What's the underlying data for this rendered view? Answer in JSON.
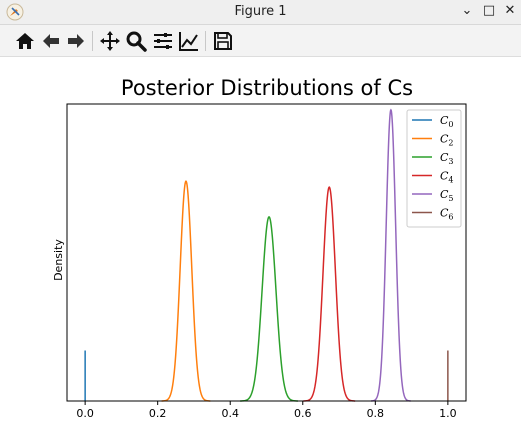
{
  "window": {
    "title": "Figure 1",
    "minimize_glyph": "⌄",
    "maximize_glyph": "□",
    "close_glyph": "✕"
  },
  "toolbar": {
    "icons": [
      "home-icon",
      "back-arrow-icon",
      "forward-arrow-icon",
      "pan-icon",
      "zoom-icon",
      "subplots-icon",
      "edit-curves-icon",
      "save-icon"
    ]
  },
  "chart_data": {
    "type": "line",
    "title": "Posterior Distributions of Cs",
    "xlabel": "",
    "ylabel": "Density",
    "xlim": [
      -0.05,
      1.05
    ],
    "ylim": [
      0,
      1.0
    ],
    "xticks": [
      0.0,
      0.2,
      0.4,
      0.6,
      0.8,
      1.0
    ],
    "xtick_labels": [
      "0.0",
      "0.2",
      "0.4",
      "0.6",
      "0.8",
      "1.0"
    ],
    "yticks_visible": false,
    "grid": false,
    "legend_position": "top-right",
    "series": [
      {
        "name": "C",
        "sub": "0",
        "kind": "spike",
        "x": 0.0,
        "height": 0.17,
        "color": "#1f77b4"
      },
      {
        "name": "C",
        "sub": "2",
        "kind": "density",
        "mean": 0.278,
        "sd": 0.016,
        "peak": 0.74,
        "color": "#ff7f0e"
      },
      {
        "name": "C",
        "sub": "3",
        "kind": "density",
        "mean": 0.507,
        "sd": 0.019,
        "peak": 0.62,
        "color": "#2ca02c"
      },
      {
        "name": "C",
        "sub": "4",
        "kind": "density",
        "mean": 0.673,
        "sd": 0.017,
        "peak": 0.72,
        "color": "#d62728"
      },
      {
        "name": "C",
        "sub": "5",
        "kind": "density",
        "mean": 0.843,
        "sd": 0.013,
        "peak": 0.98,
        "color": "#9467bd"
      },
      {
        "name": "C",
        "sub": "6",
        "kind": "spike",
        "x": 1.0,
        "height": 0.17,
        "color": "#8c564b"
      }
    ]
  }
}
